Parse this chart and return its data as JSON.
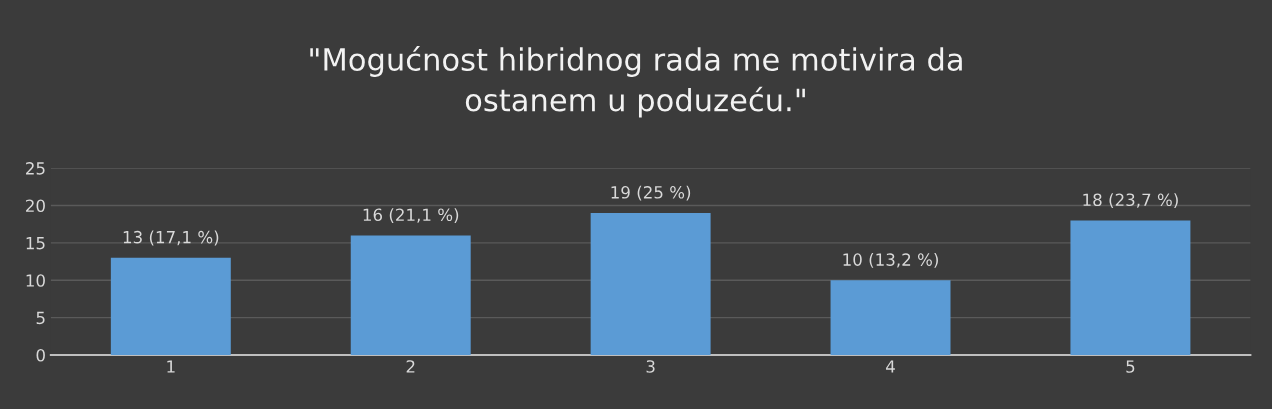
{
  "chart_data": {
    "type": "bar",
    "title": "\"Mogućnost hibridnog rada me motivira da\nostanem u poduzeću.\"",
    "categories": [
      "1",
      "2",
      "3",
      "4",
      "5"
    ],
    "values": [
      13,
      16,
      19,
      10,
      18
    ],
    "value_labels": [
      "13 (17,1 %)",
      "16 (21,1 %)",
      "19 (25 %)",
      "10 (13,2 %)",
      "18 (23,7 %)"
    ],
    "color": "#5b9bd5",
    "ylim": [
      0,
      25
    ],
    "yticks": [
      0,
      5,
      10,
      15,
      20,
      25
    ],
    "grid": "y",
    "legend": false
  }
}
